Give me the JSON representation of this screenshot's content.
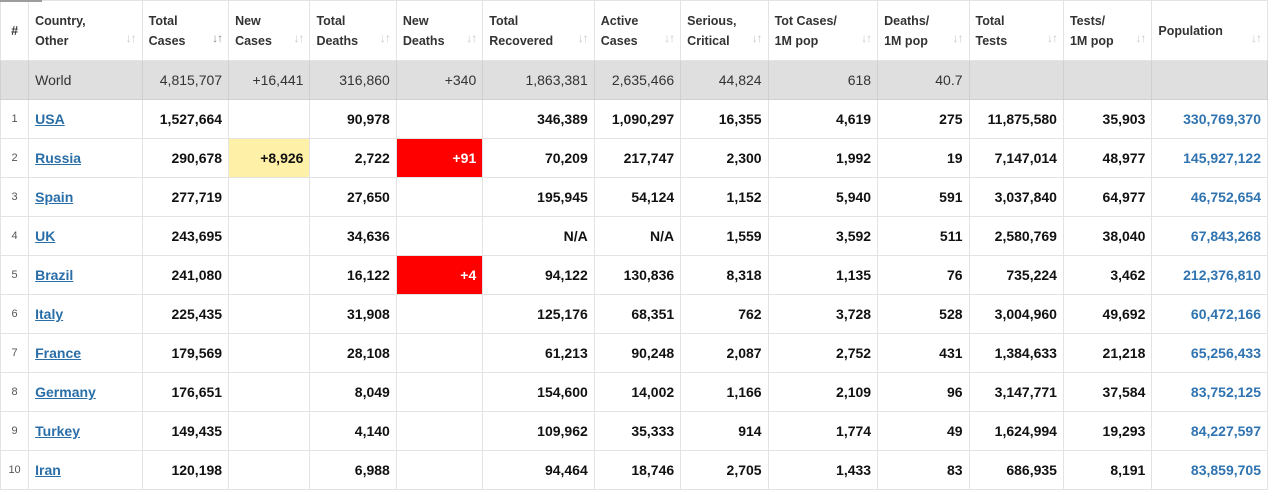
{
  "columns": [
    {
      "line1": "#",
      "line2": "",
      "sortable": false
    },
    {
      "line1": "Country,",
      "line2": "Other",
      "sortable": true
    },
    {
      "line1": "Total",
      "line2": "Cases",
      "sortable": true,
      "sorted": true
    },
    {
      "line1": "New",
      "line2": "Cases",
      "sortable": true
    },
    {
      "line1": "Total",
      "line2": "Deaths",
      "sortable": true
    },
    {
      "line1": "New",
      "line2": "Deaths",
      "sortable": true
    },
    {
      "line1": "Total",
      "line2": "Recovered",
      "sortable": true
    },
    {
      "line1": "Active",
      "line2": "Cases",
      "sortable": true
    },
    {
      "line1": "Serious,",
      "line2": "Critical",
      "sortable": true
    },
    {
      "line1": "Tot Cases/",
      "line2": "1M pop",
      "sortable": true
    },
    {
      "line1": "Deaths/",
      "line2": "1M pop",
      "sortable": true
    },
    {
      "line1": "Total",
      "line2": "Tests",
      "sortable": true
    },
    {
      "line1": "Tests/",
      "line2": "1M pop",
      "sortable": true
    },
    {
      "line1": "Population",
      "line2": "",
      "sortable": true
    }
  ],
  "sort_icon": "sort-arrows-icon",
  "sort_glyph": "↓↑",
  "world": {
    "country": "World",
    "total_cases": "4,815,707",
    "new_cases": "+16,441",
    "total_deaths": "316,860",
    "new_deaths": "+340",
    "total_recovered": "1,863,381",
    "active_cases": "2,635,466",
    "serious_critical": "44,824",
    "cases_per_1m": "618",
    "deaths_per_1m": "40.7",
    "total_tests": "",
    "tests_per_1m": "",
    "population": ""
  },
  "rows": [
    {
      "idx": "1",
      "country": "USA",
      "total_cases": "1,527,664",
      "new_cases": "",
      "total_deaths": "90,978",
      "new_deaths": "",
      "total_recovered": "346,389",
      "active_cases": "1,090,297",
      "serious_critical": "16,355",
      "cases_per_1m": "4,619",
      "deaths_per_1m": "275",
      "total_tests": "11,875,580",
      "tests_per_1m": "35,903",
      "population": "330,769,370"
    },
    {
      "idx": "2",
      "country": "Russia",
      "total_cases": "290,678",
      "new_cases": "+8,926",
      "total_deaths": "2,722",
      "new_deaths": "+91",
      "total_recovered": "70,209",
      "active_cases": "217,747",
      "serious_critical": "2,300",
      "cases_per_1m": "1,992",
      "deaths_per_1m": "19",
      "total_tests": "7,147,014",
      "tests_per_1m": "48,977",
      "population": "145,927,122"
    },
    {
      "idx": "3",
      "country": "Spain",
      "total_cases": "277,719",
      "new_cases": "",
      "total_deaths": "27,650",
      "new_deaths": "",
      "total_recovered": "195,945",
      "active_cases": "54,124",
      "serious_critical": "1,152",
      "cases_per_1m": "5,940",
      "deaths_per_1m": "591",
      "total_tests": "3,037,840",
      "tests_per_1m": "64,977",
      "population": "46,752,654"
    },
    {
      "idx": "4",
      "country": "UK",
      "total_cases": "243,695",
      "new_cases": "",
      "total_deaths": "34,636",
      "new_deaths": "",
      "total_recovered": "N/A",
      "active_cases": "N/A",
      "serious_critical": "1,559",
      "cases_per_1m": "3,592",
      "deaths_per_1m": "511",
      "total_tests": "2,580,769",
      "tests_per_1m": "38,040",
      "population": "67,843,268"
    },
    {
      "idx": "5",
      "country": "Brazil",
      "total_cases": "241,080",
      "new_cases": "",
      "total_deaths": "16,122",
      "new_deaths": "+4",
      "total_recovered": "94,122",
      "active_cases": "130,836",
      "serious_critical": "8,318",
      "cases_per_1m": "1,135",
      "deaths_per_1m": "76",
      "total_tests": "735,224",
      "tests_per_1m": "3,462",
      "population": "212,376,810"
    },
    {
      "idx": "6",
      "country": "Italy",
      "total_cases": "225,435",
      "new_cases": "",
      "total_deaths": "31,908",
      "new_deaths": "",
      "total_recovered": "125,176",
      "active_cases": "68,351",
      "serious_critical": "762",
      "cases_per_1m": "3,728",
      "deaths_per_1m": "528",
      "total_tests": "3,004,960",
      "tests_per_1m": "49,692",
      "population": "60,472,166"
    },
    {
      "idx": "7",
      "country": "France",
      "total_cases": "179,569",
      "new_cases": "",
      "total_deaths": "28,108",
      "new_deaths": "",
      "total_recovered": "61,213",
      "active_cases": "90,248",
      "serious_critical": "2,087",
      "cases_per_1m": "2,752",
      "deaths_per_1m": "431",
      "total_tests": "1,384,633",
      "tests_per_1m": "21,218",
      "population": "65,256,433"
    },
    {
      "idx": "8",
      "country": "Germany",
      "total_cases": "176,651",
      "new_cases": "",
      "total_deaths": "8,049",
      "new_deaths": "",
      "total_recovered": "154,600",
      "active_cases": "14,002",
      "serious_critical": "1,166",
      "cases_per_1m": "2,109",
      "deaths_per_1m": "96",
      "total_tests": "3,147,771",
      "tests_per_1m": "37,584",
      "population": "83,752,125"
    },
    {
      "idx": "9",
      "country": "Turkey",
      "total_cases": "149,435",
      "new_cases": "",
      "total_deaths": "4,140",
      "new_deaths": "",
      "total_recovered": "109,962",
      "active_cases": "35,333",
      "serious_critical": "914",
      "cases_per_1m": "1,774",
      "deaths_per_1m": "49",
      "total_tests": "1,624,994",
      "tests_per_1m": "19,293",
      "population": "84,227,597"
    },
    {
      "idx": "10",
      "country": "Iran",
      "total_cases": "120,198",
      "new_cases": "",
      "total_deaths": "6,988",
      "new_deaths": "",
      "total_recovered": "94,464",
      "active_cases": "18,746",
      "serious_critical": "2,705",
      "cases_per_1m": "1,433",
      "deaths_per_1m": "83",
      "total_tests": "686,935",
      "tests_per_1m": "8,191",
      "population": "83,859,705"
    }
  ],
  "colors": {
    "new_cases_highlight": "#fff0a8",
    "new_deaths_highlight": "#ff0000",
    "link": "#2a6ea8",
    "population": "#2f73b0",
    "world_row_bg": "#dfdfdf"
  }
}
